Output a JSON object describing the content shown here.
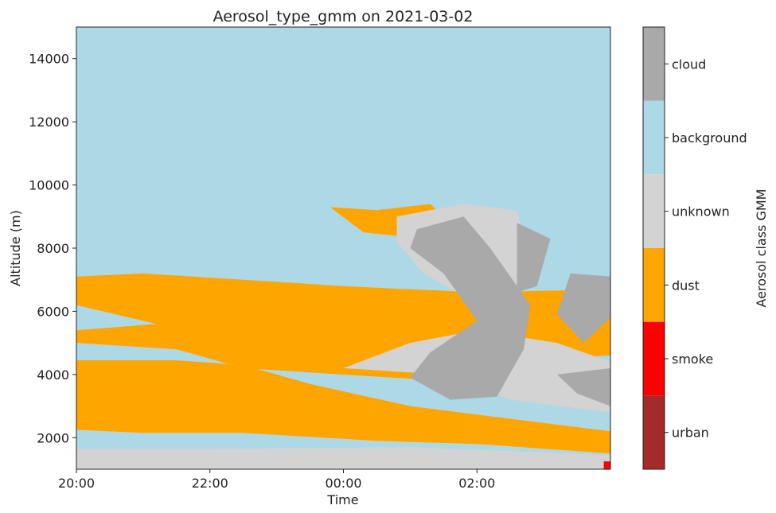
{
  "chart_data": {
    "type": "heatmap",
    "title": "Aerosol_type_gmm on 2021-03-02",
    "xlabel": "Time",
    "ylabel": "Altitude (m)",
    "x_ticks": [
      "20:00",
      "22:00",
      "00:00",
      "02:00"
    ],
    "x_tick_hours": [
      20,
      22,
      24,
      26
    ],
    "xlim_hours": [
      20,
      28.0
    ],
    "y_ticks": [
      2000,
      4000,
      6000,
      8000,
      10000,
      12000,
      14000
    ],
    "ylim": [
      1000,
      15000
    ],
    "colorbar": {
      "label": "Aerosol class GMM",
      "classes": [
        {
          "name": "urban",
          "color": "#a52a2a"
        },
        {
          "name": "smoke",
          "color": "#ff0000"
        },
        {
          "name": "dust",
          "color": "#ffa500"
        },
        {
          "name": "unknown",
          "color": "#d3d3d3"
        },
        {
          "name": "background",
          "color": "#add8e6"
        },
        {
          "name": "cloud",
          "color": "#a9a9a9"
        }
      ]
    },
    "regions": [
      {
        "class": "background",
        "time_range": [
          20,
          28.0
        ],
        "alt_range": [
          1000,
          15000
        ]
      },
      {
        "class": "unknown",
        "description_shape": "surface layer",
        "polygon": [
          [
            20,
            1000
          ],
          [
            28.0,
            1000
          ],
          [
            28.0,
            1450
          ],
          [
            25,
            1700
          ],
          [
            22,
            1650
          ],
          [
            20,
            1650
          ]
        ]
      },
      {
        "class": "dust",
        "polygon": [
          [
            20,
            2250
          ],
          [
            21,
            2150
          ],
          [
            22.5,
            2150
          ],
          [
            24.5,
            1900
          ],
          [
            26,
            1800
          ],
          [
            28.0,
            1500
          ],
          [
            28.0,
            2200
          ],
          [
            26.5,
            2600
          ],
          [
            25,
            3000
          ],
          [
            23.5,
            3700
          ],
          [
            22.5,
            4300
          ],
          [
            21.5,
            4450
          ],
          [
            20,
            4450
          ]
        ]
      },
      {
        "class": "dust",
        "polygon": [
          [
            20,
            5000
          ],
          [
            21.5,
            4800
          ],
          [
            22.5,
            4200
          ],
          [
            24,
            4000
          ],
          [
            25.5,
            3800
          ],
          [
            27,
            4500
          ],
          [
            28.0,
            4600
          ],
          [
            28.0,
            6700
          ],
          [
            26,
            6600
          ],
          [
            24,
            6800
          ],
          [
            22.5,
            7000
          ],
          [
            21,
            7200
          ],
          [
            20,
            7100
          ],
          [
            20,
            6200
          ],
          [
            21.2,
            5600
          ],
          [
            20,
            5400
          ]
        ]
      },
      {
        "class": "dust",
        "polygon": [
          [
            23.8,
            9300
          ],
          [
            24.5,
            9200
          ],
          [
            25.3,
            9400
          ],
          [
            25.6,
            8800
          ],
          [
            25.2,
            8300
          ],
          [
            24.3,
            8500
          ]
        ]
      },
      {
        "class": "unknown",
        "polygon": [
          [
            24,
            4200
          ],
          [
            25.5,
            4000
          ],
          [
            26.5,
            3200
          ],
          [
            28.0,
            2800
          ],
          [
            28.0,
            4400
          ],
          [
            27.2,
            5000
          ],
          [
            26,
            5400
          ],
          [
            25,
            5000
          ]
        ]
      },
      {
        "class": "unknown",
        "polygon": [
          [
            24.8,
            9000
          ],
          [
            25.8,
            9400
          ],
          [
            26.6,
            9200
          ],
          [
            26.8,
            7400
          ],
          [
            26.2,
            6000
          ],
          [
            25.2,
            7200
          ],
          [
            24.8,
            8200
          ]
        ]
      },
      {
        "class": "cloud",
        "polygon": [
          [
            25.1,
            8600
          ],
          [
            25.8,
            9000
          ],
          [
            26.2,
            8000
          ],
          [
            26.8,
            6200
          ],
          [
            26.7,
            4800
          ],
          [
            26.3,
            3300
          ],
          [
            25.6,
            3200
          ],
          [
            25.0,
            3900
          ],
          [
            25.3,
            4700
          ],
          [
            26.0,
            5700
          ],
          [
            25.5,
            7200
          ],
          [
            25.0,
            8000
          ]
        ]
      },
      {
        "class": "cloud",
        "polygon": [
          [
            26.6,
            8800
          ],
          [
            27.1,
            8300
          ],
          [
            26.9,
            6800
          ],
          [
            26.6,
            6600
          ]
        ]
      },
      {
        "class": "cloud",
        "polygon": [
          [
            27.4,
            7200
          ],
          [
            28.0,
            7100
          ],
          [
            28.0,
            5800
          ],
          [
            27.6,
            5000
          ],
          [
            27.2,
            5900
          ]
        ]
      },
      {
        "class": "cloud",
        "polygon": [
          [
            27.2,
            4000
          ],
          [
            28.0,
            4200
          ],
          [
            28.0,
            3000
          ],
          [
            27.5,
            3400
          ]
        ]
      },
      {
        "class": "smoke",
        "polygon": [
          [
            27.9,
            1000
          ],
          [
            28.0,
            1000
          ],
          [
            28.0,
            1250
          ],
          [
            27.9,
            1250
          ]
        ]
      }
    ]
  }
}
